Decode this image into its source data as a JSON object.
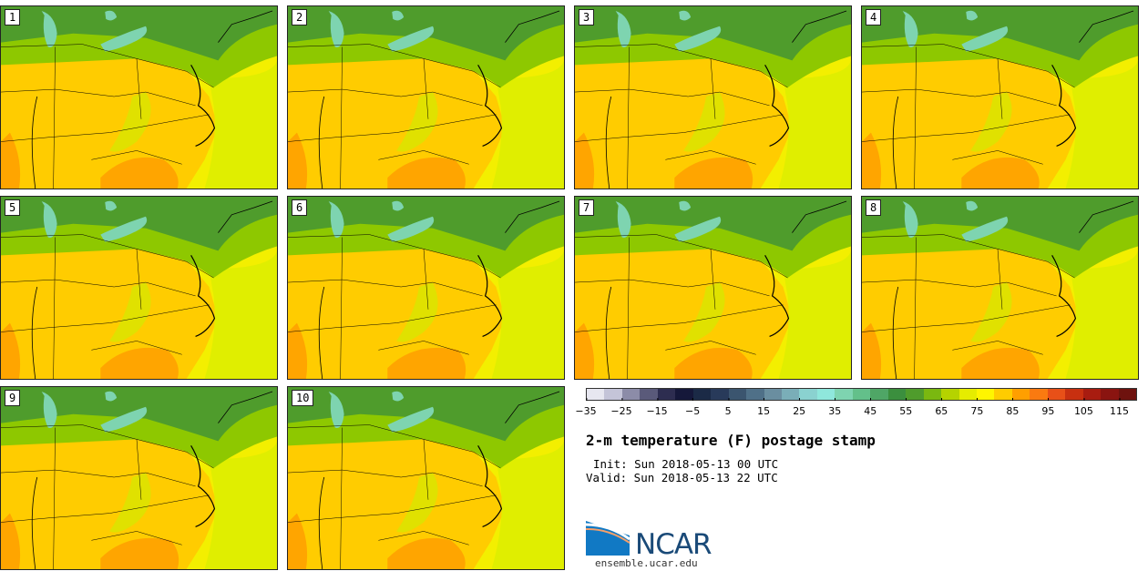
{
  "members": [
    {
      "label": "1"
    },
    {
      "label": "2"
    },
    {
      "label": "3"
    },
    {
      "label": "4"
    },
    {
      "label": "5"
    },
    {
      "label": "6"
    },
    {
      "label": "7"
    },
    {
      "label": "8"
    },
    {
      "label": "9"
    },
    {
      "label": "10"
    }
  ],
  "title": "2-m temperature (F) postage stamp",
  "init_line": "Init: Sun 2018-05-13 00 UTC",
  "valid_line": "Valid: Sun 2018-05-13 22 UTC",
  "logo_text": "NCAR",
  "url": "ensemble.ucar.edu",
  "colorbar": {
    "ticks": [
      "−35",
      "−25",
      "−15",
      "−5",
      "5",
      "15",
      "25",
      "35",
      "45",
      "55",
      "65",
      "75",
      "85",
      "95",
      "105",
      "115"
    ],
    "colors": [
      "#e7e7f0",
      "#c4c4d8",
      "#8c8ca8",
      "#5a5a7a",
      "#2d2d50",
      "#15183a",
      "#1b2a46",
      "#283a5a",
      "#3b556f",
      "#4f7088",
      "#6a8ea0",
      "#7aaeb8",
      "#8ad2d0",
      "#8fe7dc",
      "#7ed4b0",
      "#63c08a",
      "#4fa666",
      "#3b8f3e",
      "#4f9c2c",
      "#7ab810",
      "#b5d300",
      "#e6ec00",
      "#fff500",
      "#ffcc00",
      "#ff9f00",
      "#fa7a10",
      "#e85018",
      "#c83010",
      "#a81c10",
      "#8a1410",
      "#6e120e"
    ]
  },
  "field_colors": {
    "ocean": "#f3ef00",
    "land_warm": "#ffcc00",
    "land_hot": "#ffa500",
    "land_mild": "#d8e600",
    "north": "#8ec800",
    "north2": "#4f9c2c",
    "great_lakes": "#7ed4b0",
    "border": "#000000"
  }
}
